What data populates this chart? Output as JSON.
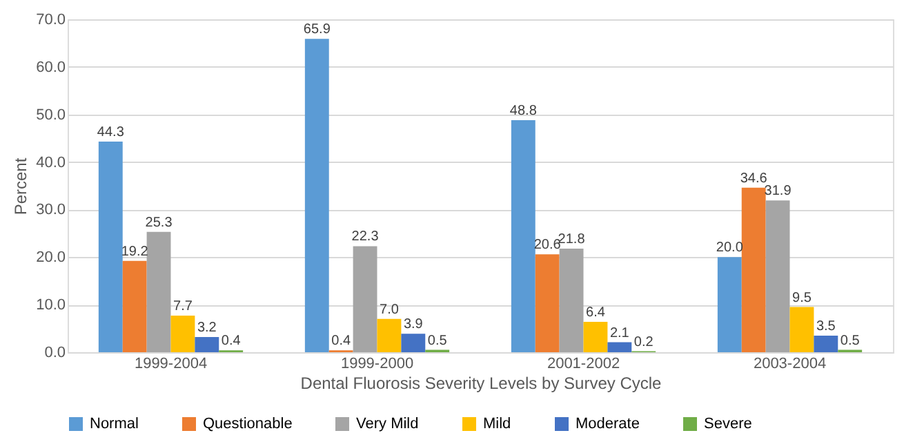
{
  "chart_data": {
    "type": "bar",
    "xlabel": "Dental Fluorosis Severity Levels by Survey Cycle",
    "ylabel": "Percent",
    "categories": [
      "1999-2004",
      "1999-2000",
      "2001-2002",
      "2003-2004"
    ],
    "series": [
      {
        "name": "Normal",
        "color": "#5b9bd5",
        "values": [
          44.3,
          65.9,
          48.8,
          20.0
        ],
        "value_labels": [
          "44.3",
          "65.9",
          "48.8",
          "20.0"
        ]
      },
      {
        "name": "Questionable",
        "color": "#ed7d31",
        "values": [
          19.2,
          0.4,
          20.6,
          34.6
        ],
        "value_labels": [
          "19.2",
          "0.4",
          "20.6",
          "34.6"
        ]
      },
      {
        "name": "Very Mild",
        "color": "#a5a5a5",
        "values": [
          25.3,
          22.3,
          21.8,
          31.9
        ],
        "value_labels": [
          "25.3",
          "22.3",
          "21.8",
          "31.9"
        ]
      },
      {
        "name": "Mild",
        "color": "#ffc000",
        "values": [
          7.7,
          7.0,
          6.4,
          9.5
        ],
        "value_labels": [
          "7.7",
          "7.0",
          "6.4",
          "9.5"
        ]
      },
      {
        "name": "Moderate",
        "color": "#4472c4",
        "values": [
          3.2,
          3.9,
          2.1,
          3.5
        ],
        "value_labels": [
          "3.2",
          "3.9",
          "2.1",
          "3.5"
        ]
      },
      {
        "name": "Severe",
        "color": "#70ad47",
        "values": [
          0.4,
          0.5,
          0.2,
          0.5
        ],
        "value_labels": [
          "0.4",
          "0.5",
          "0.2",
          "0.5"
        ]
      }
    ],
    "ylim": [
      0,
      70
    ],
    "yticks": [
      {
        "value": 0,
        "label": "0.0"
      },
      {
        "value": 10,
        "label": "10.0"
      },
      {
        "value": 20,
        "label": "20.0"
      },
      {
        "value": 30,
        "label": "30.0"
      },
      {
        "value": 40,
        "label": "40.0"
      },
      {
        "value": 50,
        "label": "50.0"
      },
      {
        "value": 60,
        "label": "60.0"
      },
      {
        "value": 70,
        "label": "70.0"
      }
    ],
    "grid": "y",
    "legend": "bottom"
  }
}
